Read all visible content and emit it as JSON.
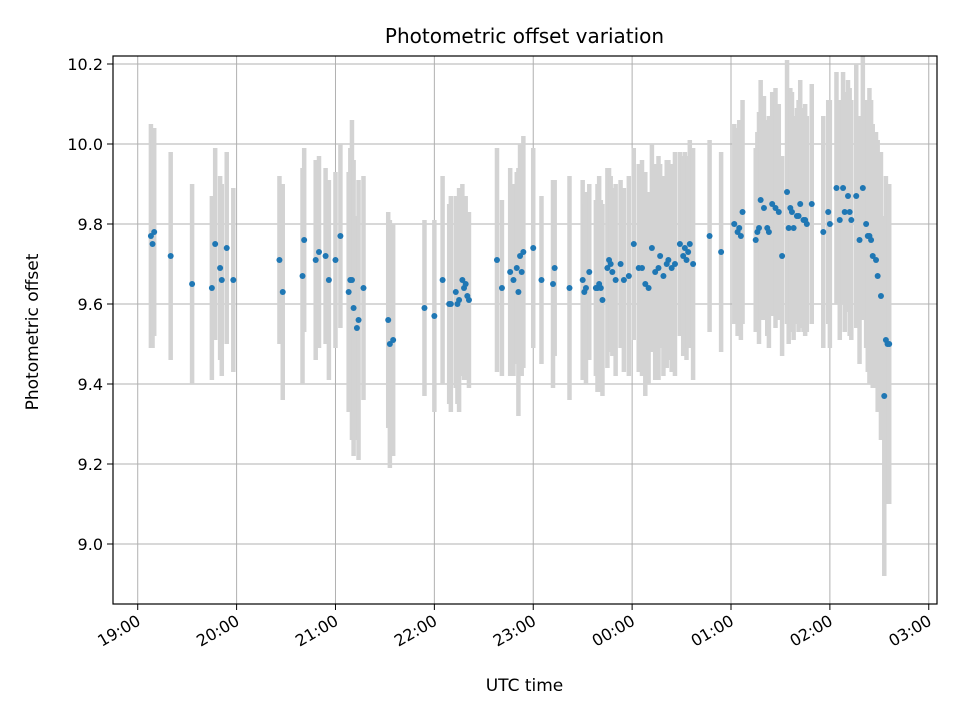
{
  "chart_data": {
    "type": "scatter",
    "title": "Photometric offset variation",
    "xlabel": "UTC time",
    "ylabel": "Photometric offset",
    "x_axis_kind": "time (HH:MM, UTC)",
    "xlim": [
      "18:45",
      "03:05"
    ],
    "ylim": [
      8.85,
      10.22
    ],
    "x_ticks": [
      "19:00",
      "20:00",
      "21:00",
      "22:00",
      "23:00",
      "00:00",
      "01:00",
      "02:00",
      "03:00"
    ],
    "y_ticks": [
      "9.0",
      "9.2",
      "9.4",
      "9.6",
      "9.8",
      "10.0",
      "10.2"
    ],
    "y_tick_values": [
      9.0,
      9.2,
      9.4,
      9.6,
      9.8,
      10.0,
      10.2
    ],
    "grid": true,
    "marker_color": "#1f77b4",
    "errorbar_color": "#d3d3d3",
    "series": [
      {
        "x": [
          "19:08",
          "19:09",
          "19:10",
          "19:20",
          "19:33",
          "19:45",
          "19:47",
          "19:50",
          "19:51",
          "19:54",
          "19:58",
          "20:26",
          "20:28",
          "20:40",
          "20:41",
          "20:48",
          "20:50",
          "20:54",
          "20:56",
          "21:00",
          "21:03",
          "21:08",
          "21:09",
          "21:10",
          "21:11",
          "21:13",
          "21:14",
          "21:17",
          "21:32",
          "21:33",
          "21:35",
          "21:54",
          "22:00",
          "22:05",
          "22:09",
          "22:10",
          "22:13",
          "22:14",
          "22:15",
          "22:17",
          "22:18",
          "22:19",
          "22:20",
          "22:21",
          "22:38",
          "22:41",
          "22:46",
          "22:48",
          "22:50",
          "22:51",
          "22:52",
          "22:53",
          "22:54",
          "23:00",
          "23:05",
          "23:12",
          "23:13",
          "23:22",
          "23:30",
          "23:31",
          "23:32",
          "23:34",
          "23:38",
          "23:39",
          "23:40",
          "23:41",
          "23:42",
          "23:45",
          "23:46",
          "23:47",
          "23:48",
          "23:50",
          "23:53",
          "23:55",
          "23:58",
          "00:01",
          "00:04",
          "00:06",
          "00:08",
          "00:10",
          "00:12",
          "00:14",
          "00:16",
          "00:17",
          "00:19",
          "00:21",
          "00:22",
          "00:24",
          "00:26",
          "00:29",
          "00:31",
          "00:32",
          "00:33",
          "00:34",
          "00:35",
          "00:37",
          "00:47",
          "00:54",
          "01:02",
          "01:04",
          "01:05",
          "01:06",
          "01:07",
          "01:15",
          "01:16",
          "01:17",
          "01:18",
          "01:20",
          "01:22",
          "01:23",
          "01:25",
          "01:27",
          "01:29",
          "01:31",
          "01:34",
          "01:35",
          "01:36",
          "01:37",
          "01:38",
          "01:40",
          "01:41",
          "01:42",
          "01:44",
          "01:45",
          "01:46",
          "01:49",
          "01:56",
          "01:59",
          "02:00",
          "02:04",
          "02:06",
          "02:08",
          "02:09",
          "02:11",
          "02:12",
          "02:13",
          "02:16",
          "02:18",
          "02:20",
          "02:22",
          "02:23",
          "02:24",
          "02:25",
          "02:26",
          "02:28",
          "02:29",
          "02:31",
          "02:33",
          "02:34",
          "02:35",
          "02:36"
        ],
        "y": [
          9.77,
          9.75,
          9.78,
          9.72,
          9.65,
          9.64,
          9.75,
          9.69,
          9.66,
          9.74,
          9.66,
          9.71,
          9.63,
          9.67,
          9.76,
          9.71,
          9.73,
          9.72,
          9.66,
          9.71,
          9.77,
          9.63,
          9.66,
          9.66,
          9.59,
          9.54,
          9.56,
          9.64,
          9.56,
          9.5,
          9.51,
          9.59,
          9.57,
          9.66,
          9.6,
          9.6,
          9.63,
          9.6,
          9.61,
          9.66,
          9.64,
          9.65,
          9.62,
          9.61,
          9.71,
          9.64,
          9.68,
          9.66,
          9.69,
          9.63,
          9.72,
          9.68,
          9.73,
          9.74,
          9.66,
          9.65,
          9.69,
          9.64,
          9.66,
          9.63,
          9.64,
          9.68,
          9.64,
          9.64,
          9.65,
          9.64,
          9.61,
          9.69,
          9.71,
          9.7,
          9.68,
          9.66,
          9.7,
          9.66,
          9.67,
          9.75,
          9.69,
          9.69,
          9.65,
          9.64,
          9.74,
          9.68,
          9.69,
          9.72,
          9.67,
          9.7,
          9.71,
          9.69,
          9.7,
          9.75,
          9.72,
          9.74,
          9.71,
          9.73,
          9.75,
          9.7,
          9.77,
          9.73,
          9.8,
          9.78,
          9.79,
          9.77,
          9.83,
          9.76,
          9.78,
          9.79,
          9.86,
          9.84,
          9.79,
          9.78,
          9.85,
          9.84,
          9.83,
          9.72,
          9.88,
          9.79,
          9.84,
          9.83,
          9.79,
          9.82,
          9.82,
          9.85,
          9.81,
          9.81,
          9.8,
          9.85,
          9.78,
          9.83,
          9.8,
          9.89,
          9.81,
          9.89,
          9.83,
          9.87,
          9.83,
          9.81,
          9.87,
          9.76,
          9.89,
          9.8,
          9.77,
          9.77,
          9.76,
          9.72,
          9.71,
          9.67,
          9.62,
          9.37,
          9.51,
          9.5,
          9.5
        ],
        "err": [
          0.28,
          0.26,
          0.26,
          0.26,
          0.25,
          0.23,
          0.24,
          0.23,
          0.24,
          0.24,
          0.23,
          0.21,
          0.27,
          0.27,
          0.23,
          0.25,
          0.24,
          0.22,
          0.25,
          0.22,
          0.23,
          0.3,
          0.33,
          0.4,
          0.37,
          0.28,
          0.35,
          0.28,
          0.27,
          0.31,
          0.29,
          0.22,
          0.24,
          0.26,
          0.25,
          0.27,
          0.24,
          0.25,
          0.28,
          0.24,
          0.23,
          0.22,
          0.21,
          0.22,
          0.28,
          0.22,
          0.26,
          0.24,
          0.24,
          0.31,
          0.28,
          0.26,
          0.29,
          0.25,
          0.21,
          0.26,
          0.22,
          0.28,
          0.25,
          0.22,
          0.24,
          0.22,
          0.22,
          0.26,
          0.27,
          0.22,
          0.24,
          0.25,
          0.23,
          0.22,
          0.21,
          0.24,
          0.21,
          0.23,
          0.25,
          0.24,
          0.26,
          0.27,
          0.28,
          0.24,
          0.26,
          0.27,
          0.28,
          0.23,
          0.25,
          0.26,
          0.25,
          0.26,
          0.28,
          0.23,
          0.25,
          0.24,
          0.25,
          0.24,
          0.26,
          0.29,
          0.24,
          0.25,
          0.25,
          0.26,
          0.27,
          0.26,
          0.28,
          0.23,
          0.25,
          0.29,
          0.3,
          0.28,
          0.27,
          0.29,
          0.28,
          0.3,
          0.27,
          0.25,
          0.33,
          0.29,
          0.3,
          0.3,
          0.28,
          0.27,
          0.29,
          0.31,
          0.28,
          0.29,
          0.27,
          0.3,
          0.29,
          0.28,
          0.31,
          0.29,
          0.3,
          0.29,
          0.3,
          0.29,
          0.31,
          0.3,
          0.33,
          0.31,
          0.33,
          0.31,
          0.34,
          0.37,
          0.35,
          0.33,
          0.32,
          0.34,
          0.36,
          0.45,
          0.41,
          0.4,
          0.4
        ]
      }
    ]
  }
}
